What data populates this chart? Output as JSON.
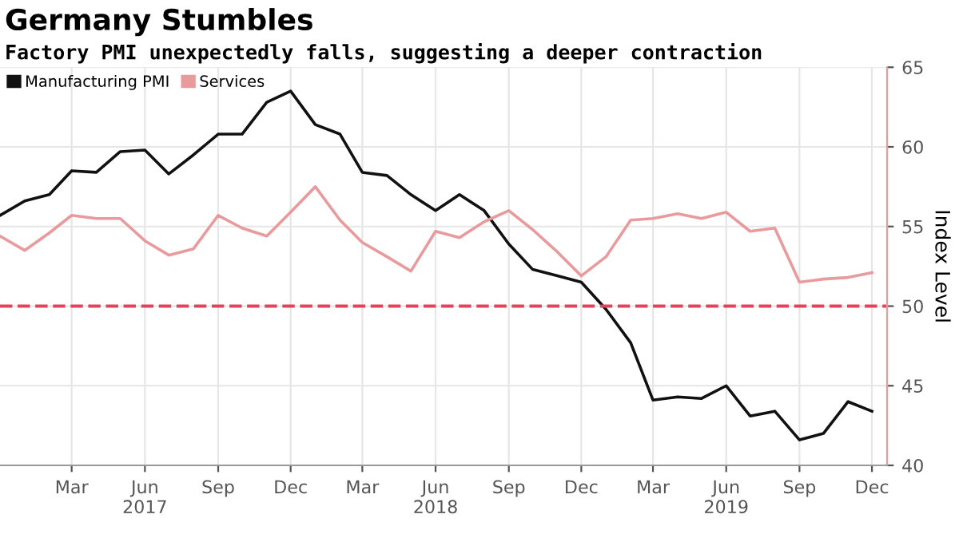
{
  "chart_data": {
    "type": "line",
    "title": "Germany Stumbles",
    "subtitle": "Factory PMI unexpectedly falls, suggesting a deeper contraction",
    "ylabel": "Index Level",
    "x": [
      "2016-12",
      "2017-01",
      "2017-02",
      "2017-03",
      "2017-04",
      "2017-05",
      "2017-06",
      "2017-07",
      "2017-08",
      "2017-09",
      "2017-10",
      "2017-11",
      "2017-12",
      "2018-01",
      "2018-02",
      "2018-03",
      "2018-04",
      "2018-05",
      "2018-06",
      "2018-07",
      "2018-08",
      "2018-09",
      "2018-10",
      "2018-11",
      "2018-12",
      "2019-01",
      "2019-02",
      "2019-03",
      "2019-04",
      "2019-05",
      "2019-06",
      "2019-07",
      "2019-08",
      "2019-09",
      "2019-10",
      "2019-11",
      "2019-12"
    ],
    "series": [
      {
        "name": "Manufacturing PMI",
        "color": "#111111",
        "values": [
          55.7,
          56.6,
          57.0,
          58.5,
          58.4,
          59.7,
          59.8,
          58.3,
          59.5,
          60.8,
          60.8,
          62.8,
          63.5,
          61.4,
          60.8,
          58.4,
          58.2,
          57.0,
          56.0,
          57.0,
          56.0,
          53.9,
          52.3,
          51.9,
          51.5,
          49.8,
          47.7,
          44.1,
          44.3,
          44.2,
          45.0,
          43.1,
          43.4,
          41.6,
          42.0,
          44.0,
          43.4
        ]
      },
      {
        "name": "Services",
        "color": "#e89a9c",
        "values": [
          54.4,
          53.5,
          54.6,
          55.7,
          55.5,
          55.5,
          54.1,
          53.2,
          53.6,
          55.7,
          54.9,
          54.4,
          55.9,
          57.5,
          55.4,
          54.0,
          53.1,
          52.2,
          54.7,
          54.3,
          55.3,
          56.0,
          54.8,
          53.4,
          51.9,
          53.1,
          55.4,
          55.5,
          55.8,
          55.5,
          55.9,
          54.7,
          54.9,
          51.5,
          51.7,
          51.8,
          52.1
        ]
      }
    ],
    "xlim": [
      "2016-12-01",
      "2019-12-20"
    ],
    "xticks": [
      {
        "value": "2017-03",
        "label": "Mar"
      },
      {
        "value": "2017-06",
        "label": "Jun\n2017"
      },
      {
        "value": "2017-09",
        "label": "Sep"
      },
      {
        "value": "2017-12",
        "label": "Dec"
      },
      {
        "value": "2018-03",
        "label": "Mar"
      },
      {
        "value": "2018-06",
        "label": "Jun\n2018"
      },
      {
        "value": "2018-09",
        "label": "Sep"
      },
      {
        "value": "2018-12",
        "label": "Dec"
      },
      {
        "value": "2019-03",
        "label": "Mar"
      },
      {
        "value": "2019-06",
        "label": "Jun\n2019"
      },
      {
        "value": "2019-09",
        "label": "Sep"
      },
      {
        "value": "2019-12",
        "label": "Dec"
      }
    ],
    "ylim": [
      40,
      65
    ],
    "yticks": [
      40,
      45,
      50,
      55,
      60,
      65
    ],
    "ref_lines": [
      {
        "axis": "y",
        "value": 50,
        "color": "#e0435a",
        "line_style": "dashed"
      }
    ],
    "grid": true,
    "legend": "top left",
    "line_style": "solid",
    "marker": "none"
  }
}
